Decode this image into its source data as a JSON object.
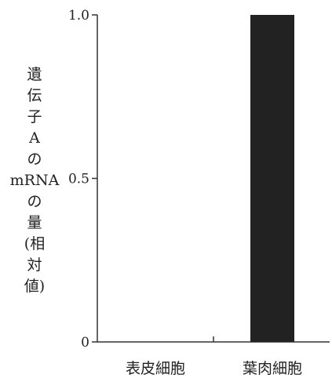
{
  "chart_data": {
    "type": "bar",
    "categories": [
      "表皮細胞",
      "葉肉細胞"
    ],
    "values": [
      0,
      1.0
    ],
    "title": "",
    "xlabel": "",
    "ylabel": "遺伝子Aのmrnaの量(相対値)",
    "ylabel_lines": [
      "遺",
      "伝",
      "子",
      "A",
      "の",
      "mRNA",
      "の",
      "量",
      "(相",
      "対",
      "値)"
    ],
    "ylim": [
      0,
      1.0
    ],
    "yticks": [
      {
        "value": 0,
        "label": "0"
      },
      {
        "value": 0.5,
        "label": "0.5"
      },
      {
        "value": 1.0,
        "label": "1.0"
      }
    ],
    "grid": false,
    "bar_color": "#222222"
  }
}
